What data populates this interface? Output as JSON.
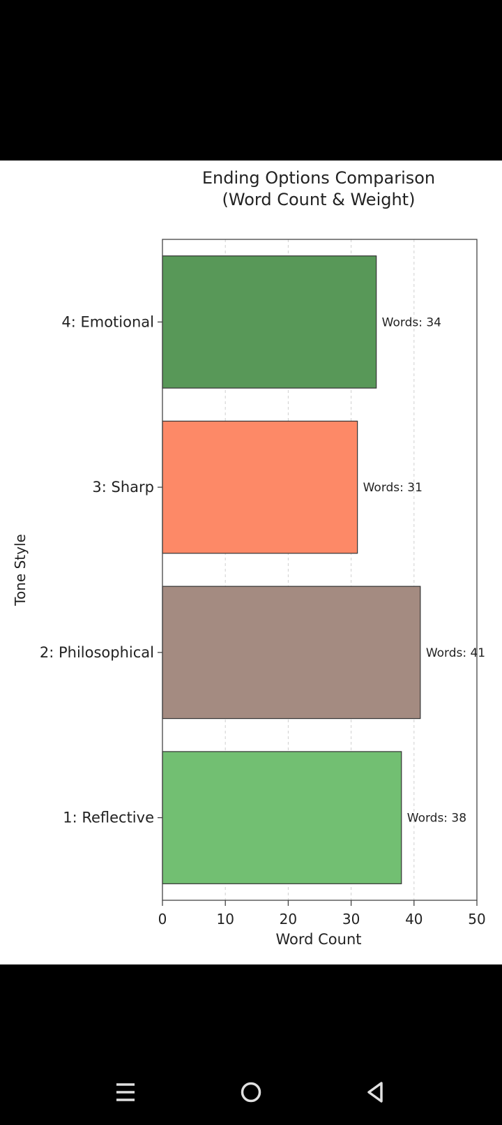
{
  "chart_data": {
    "type": "bar",
    "orientation": "horizontal",
    "title": "Ending Options Comparison",
    "subtitle": "(Word Count & Weight)",
    "xlabel": "Word Count",
    "ylabel": "Tone Style",
    "xlim": [
      0,
      50
    ],
    "xticks": [
      0,
      10,
      20,
      30,
      40,
      50
    ],
    "grid": "x-dashed",
    "categories": [
      "1: Reflective",
      "2: Philosophical",
      "3: Sharp",
      "4: Emotional"
    ],
    "values": [
      38,
      41,
      31,
      34
    ],
    "colors": [
      "#72bf72",
      "#a48b81",
      "#fd8967",
      "#589858"
    ],
    "data_labels": [
      "Words: 38",
      "Words: 41",
      "Words: 31",
      "Words: 34"
    ]
  },
  "nav": {
    "icons": [
      "menu-icon",
      "home-circle-icon",
      "back-triangle-icon"
    ],
    "color": "#e0e0e0"
  }
}
